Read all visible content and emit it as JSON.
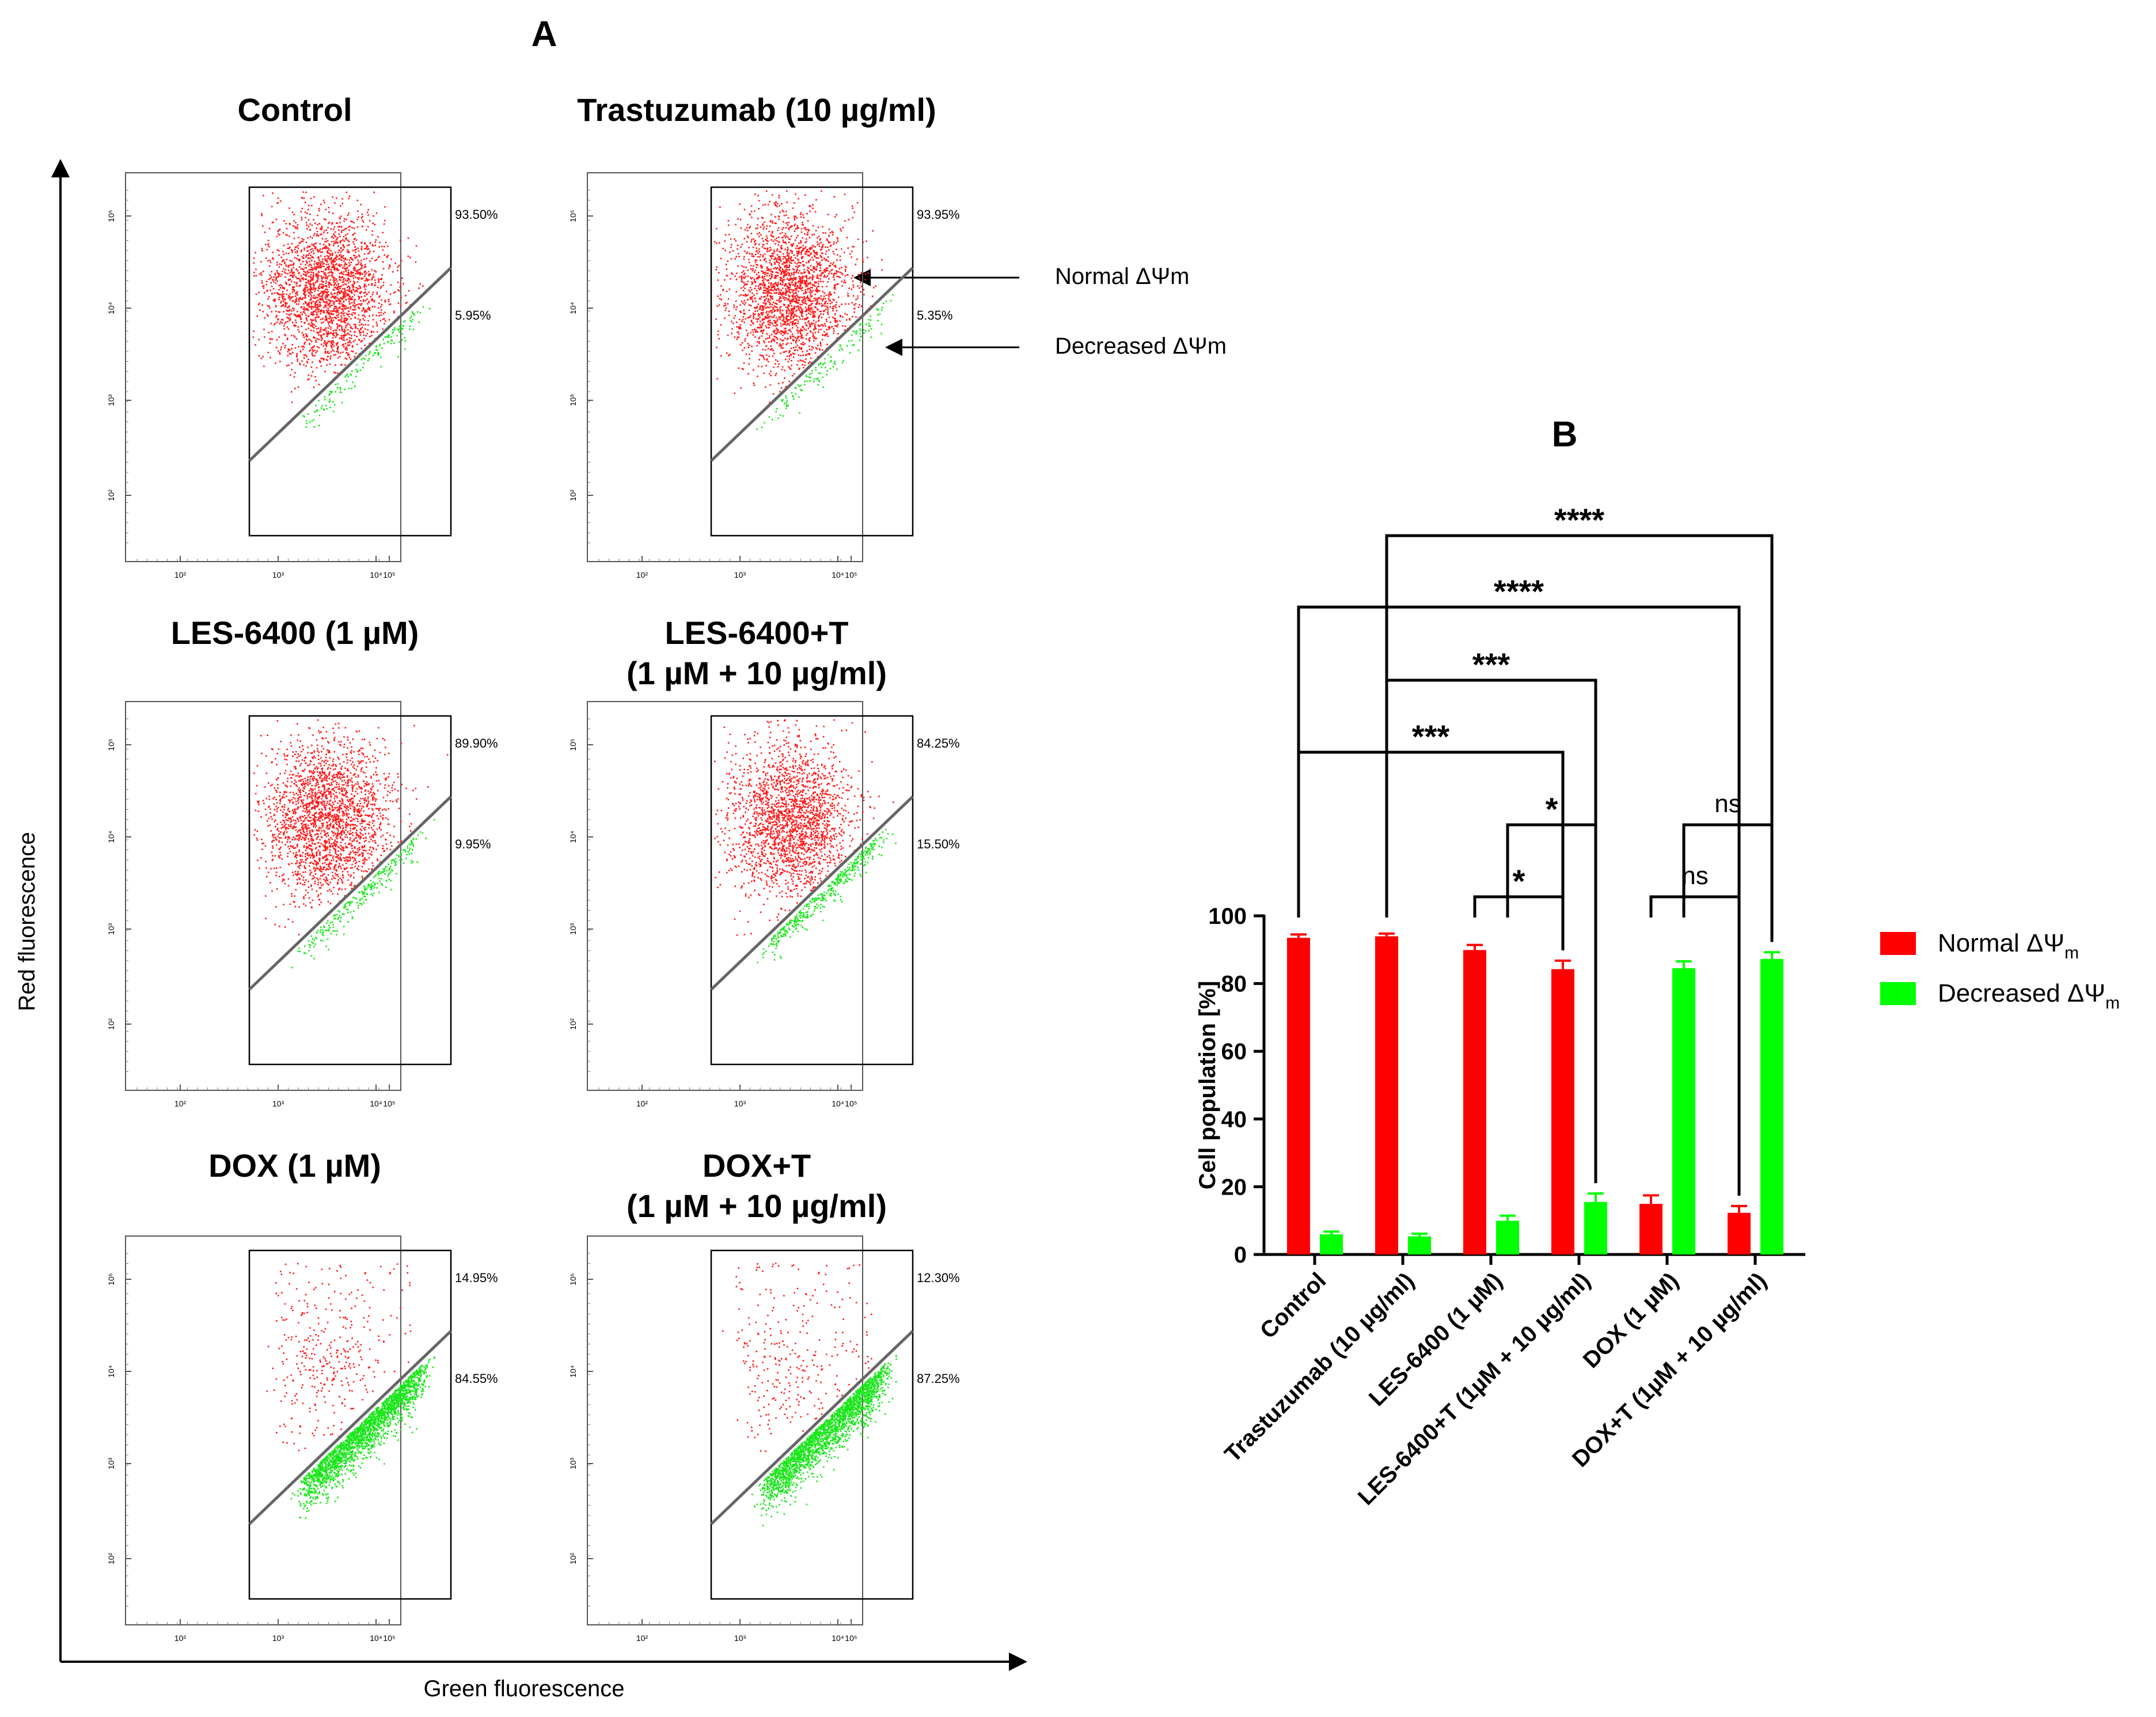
{
  "panel_a": {
    "label": "A",
    "y_axis_label": "Red fluorescence",
    "x_axis_label": "Green fluorescence",
    "tick_labels": [
      "10²",
      "10³",
      "10⁴",
      "10⁵"
    ],
    "annotations": {
      "normal": "Normal ΔΨm",
      "decreased": "Decreased ΔΨm"
    },
    "plots": [
      {
        "title": [
          "Control"
        ],
        "upper_pct": "93.50%",
        "lower_pct": "5.95%",
        "upper_fraction": 0.935,
        "lower_fraction": 0.0595
      },
      {
        "title": [
          "Trastuzumab (10 µg/ml)"
        ],
        "upper_pct": "93.95%",
        "lower_pct": "5.35%",
        "upper_fraction": 0.9395,
        "lower_fraction": 0.0535
      },
      {
        "title": [
          "LES-6400 (1 µM)"
        ],
        "upper_pct": "89.90%",
        "lower_pct": "9.95%",
        "upper_fraction": 0.899,
        "lower_fraction": 0.0995
      },
      {
        "title": [
          "LES-6400+T",
          "(1 µM + 10 µg/ml)"
        ],
        "upper_pct": "84.25%",
        "lower_pct": "15.50%",
        "upper_fraction": 0.8425,
        "lower_fraction": 0.155
      },
      {
        "title": [
          "DOX (1 µM)"
        ],
        "upper_pct": "14.95%",
        "lower_pct": "84.55%",
        "upper_fraction": 0.1495,
        "lower_fraction": 0.8455
      },
      {
        "title": [
          "DOX+T",
          "(1 µM + 10 µg/ml)"
        ],
        "upper_pct": "12.30%",
        "lower_pct": "87.25%",
        "upper_fraction": 0.123,
        "lower_fraction": 0.8725
      }
    ]
  },
  "chart_data": {
    "type": "bar",
    "panel_label": "B",
    "title": "",
    "ylabel": "Cell population [%]",
    "xlabel": "",
    "ylim": [
      0,
      100
    ],
    "yticks": [
      0,
      20,
      40,
      60,
      80,
      100
    ],
    "categories": [
      "Control",
      "Trastuzumab (10 µg/ml)",
      "LES-6400 (1 µM)",
      "LES-6400+T (1µM + 10 µg/ml)",
      "DOX (1 µM)",
      "DOX+T (1µM + 10 µg/ml)"
    ],
    "series": [
      {
        "name": "Normal ΔΨ",
        "subscript": "m",
        "color": "#ff0000",
        "values": [
          93.5,
          93.95,
          89.9,
          84.25,
          14.95,
          12.3
        ],
        "errors": [
          1.0,
          0.8,
          1.5,
          2.5,
          2.5,
          2.0
        ]
      },
      {
        "name": "Decreased ΔΨ",
        "subscript": "m",
        "color": "#00ff00",
        "values": [
          5.95,
          5.35,
          9.95,
          15.5,
          84.55,
          87.25
        ],
        "errors": [
          0.8,
          0.8,
          1.5,
          2.5,
          2.0,
          2.0
        ]
      }
    ],
    "legend_position": "right",
    "significance": [
      {
        "label": "*",
        "from": [
          2,
          0
        ],
        "to": [
          3,
          0
        ]
      },
      {
        "label": "*",
        "from": [
          2,
          1
        ],
        "to": [
          3,
          1
        ]
      },
      {
        "label": "***",
        "from": [
          0,
          0
        ],
        "to": [
          3,
          0
        ]
      },
      {
        "label": "***",
        "from": [
          1,
          0
        ],
        "to": [
          3,
          1
        ]
      },
      {
        "label": "****",
        "from": [
          0,
          0
        ],
        "to": [
          5,
          0
        ]
      },
      {
        "label": "****",
        "from": [
          1,
          0
        ],
        "to": [
          5,
          1
        ]
      },
      {
        "label": "ns",
        "from": [
          4,
          0
        ],
        "to": [
          5,
          0
        ]
      },
      {
        "label": "ns",
        "from": [
          4,
          1
        ],
        "to": [
          5,
          1
        ]
      }
    ]
  }
}
